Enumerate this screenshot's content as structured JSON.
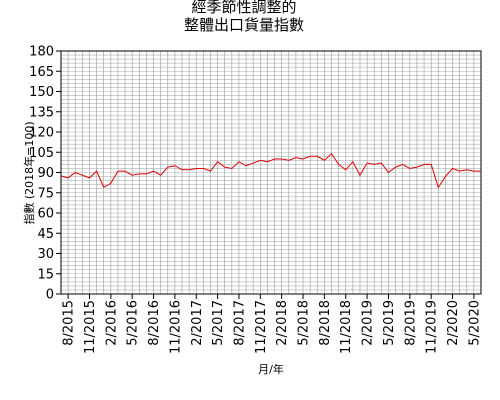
{
  "chart_data": {
    "type": "line",
    "title_lines": [
      "經季節性調整的",
      "整體出口貨量指數"
    ],
    "xlabel": "月/年",
    "ylabel": "指數 (2018年=100)",
    "ylim": [
      0,
      180
    ],
    "yticks": [
      0,
      15,
      30,
      45,
      60,
      75,
      90,
      105,
      120,
      135,
      150,
      165,
      180
    ],
    "grid": true,
    "legend": "none",
    "line_color": "#e00000",
    "x_tick_labels": [
      "8/2015",
      "11/2015",
      "2/2016",
      "5/2016",
      "8/2016",
      "11/2016",
      "2/2017",
      "5/2017",
      "8/2017",
      "11/2017",
      "2/2018",
      "5/2018",
      "8/2018",
      "11/2018",
      "2/2019",
      "5/2019",
      "8/2019",
      "11/2019",
      "2/2020",
      "5/2020"
    ],
    "start_month": "7/2015",
    "series": [
      {
        "values": [
          87.5,
          86,
          90,
          88,
          86,
          91,
          79,
          82,
          91,
          91,
          88,
          89,
          89,
          91,
          88,
          94,
          95,
          92,
          92,
          93,
          93,
          91,
          98,
          94,
          93,
          98,
          95,
          97,
          99,
          98,
          100,
          100,
          99,
          101,
          100,
          102,
          102,
          99,
          104,
          96,
          92,
          98,
          88,
          97,
          96,
          97,
          90,
          94,
          96,
          93,
          94,
          96,
          96,
          79,
          87,
          93,
          91,
          92,
          91,
          91
        ]
      }
    ]
  }
}
